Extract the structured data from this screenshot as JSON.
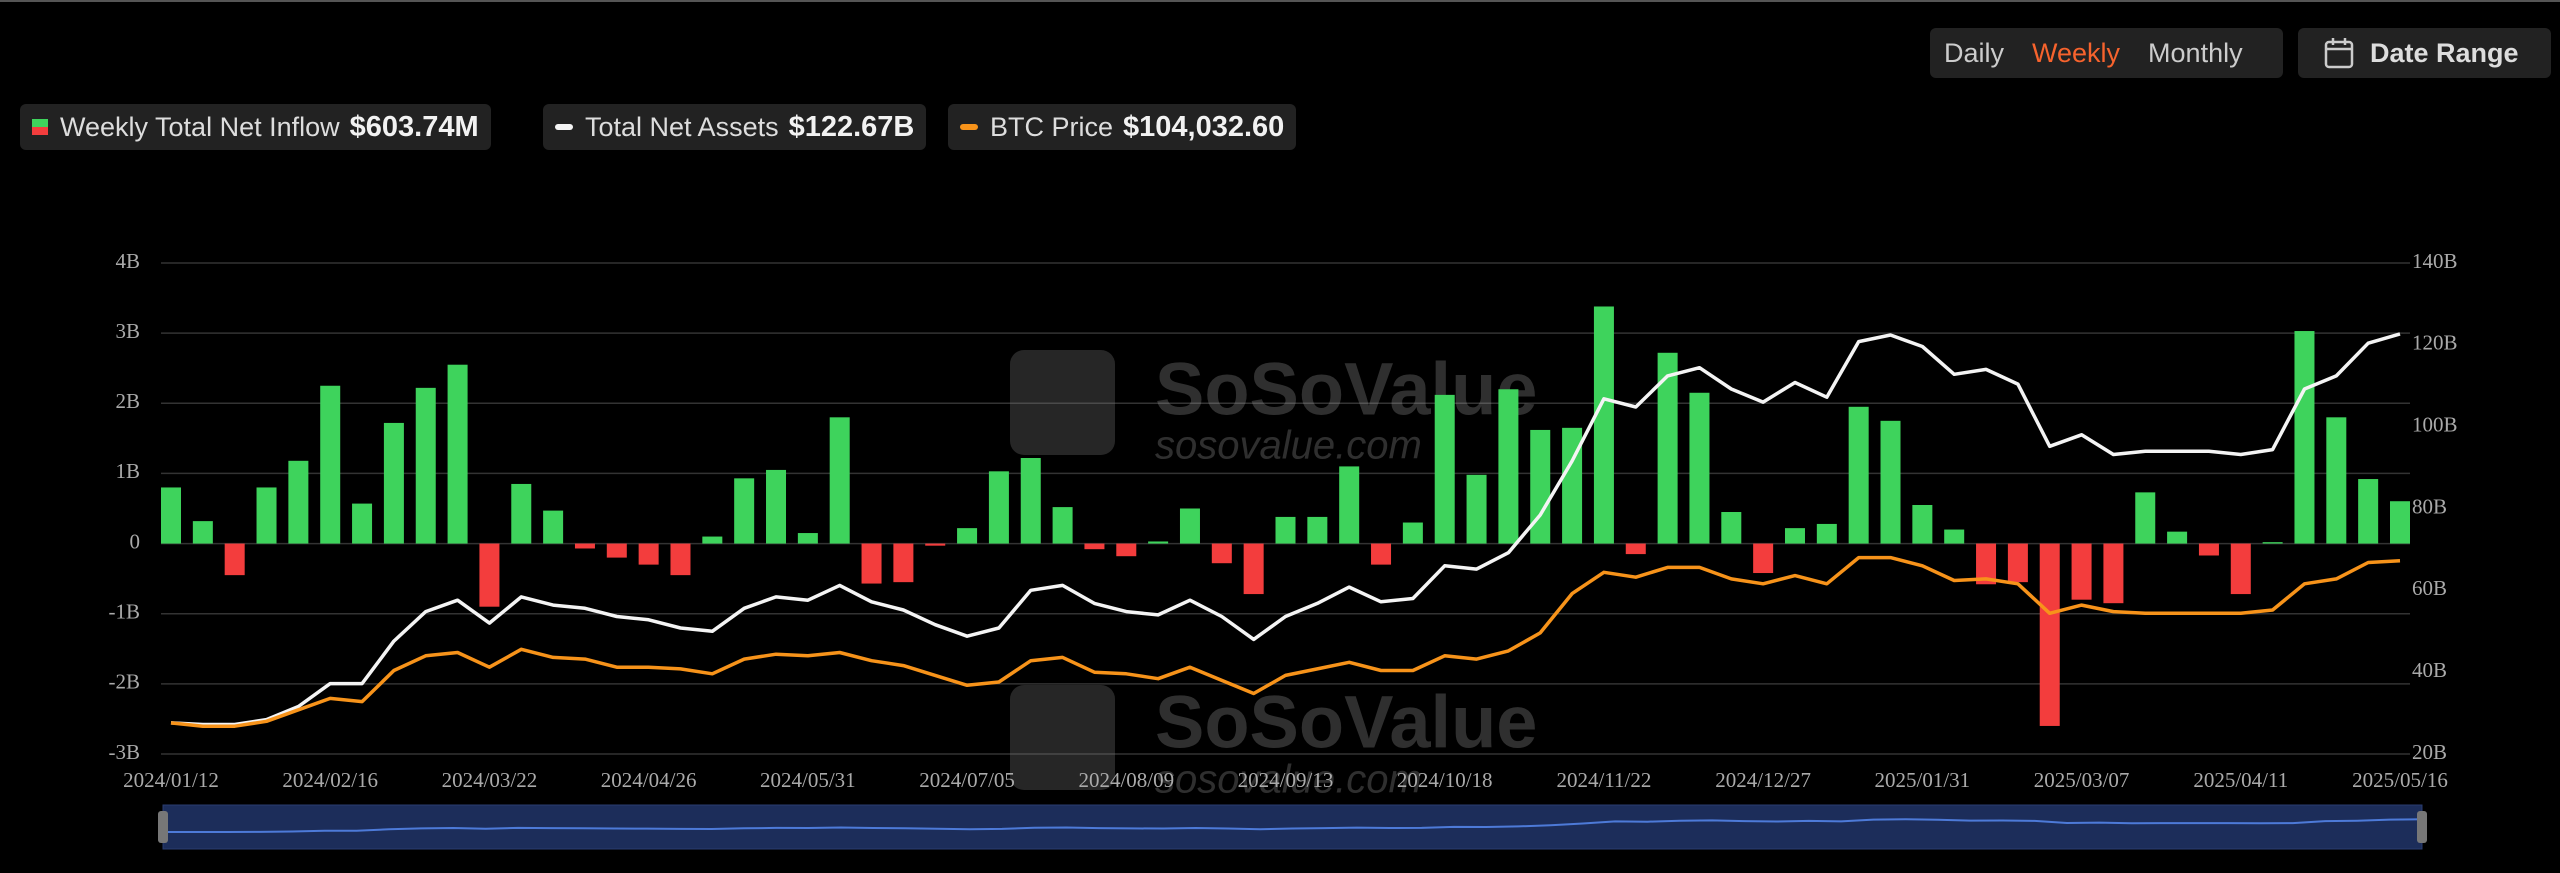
{
  "controls": {
    "periods": [
      "Daily",
      "Weekly",
      "Monthly"
    ],
    "active": "Weekly",
    "date_range": "Date Range"
  },
  "watermark": {
    "brand": "SoSoValue",
    "url": "sosovalue.com"
  },
  "chart_data": {
    "type": "bar",
    "categories": [
      "2024/01/12",
      null,
      null,
      null,
      null,
      "2024/02/16",
      null,
      null,
      null,
      null,
      "2024/03/22",
      null,
      null,
      null,
      null,
      "2024/04/26",
      null,
      null,
      null,
      null,
      "2024/05/31",
      null,
      null,
      null,
      null,
      "2024/07/05",
      null,
      null,
      null,
      null,
      "2024/08/09",
      null,
      null,
      null,
      null,
      "2024/09/13",
      null,
      null,
      null,
      null,
      "2024/10/18",
      null,
      null,
      null,
      null,
      "2024/11/22",
      null,
      null,
      null,
      null,
      "2024/12/27",
      null,
      null,
      null,
      null,
      "2025/01/31",
      null,
      null,
      null,
      null,
      "2025/03/07",
      null,
      null,
      null,
      null,
      "2025/04/11",
      null,
      null,
      null,
      null,
      "2025/05/16"
    ],
    "ylim": [
      -3,
      4
    ],
    "yticks": [
      {
        "value": -3,
        "label": "-3B"
      },
      {
        "value": -2,
        "label": "-2B"
      },
      {
        "value": -1,
        "label": "-1B"
      },
      0,
      {
        "value": 1,
        "label": "1B"
      },
      {
        "value": 2,
        "label": "2B"
      },
      {
        "value": 3,
        "label": "3B"
      },
      {
        "value": 4,
        "label": "4B"
      }
    ],
    "y2lim": [
      20,
      140
    ],
    "y2ticks": [
      {
        "value": 20,
        "label": "20B"
      },
      {
        "value": 40,
        "label": "40B"
      },
      {
        "value": 60,
        "label": "60B"
      },
      {
        "value": 80,
        "label": "80B"
      },
      {
        "value": 100,
        "label": "100B"
      },
      {
        "value": 120,
        "label": "120B"
      },
      {
        "value": 140,
        "label": "140B"
      }
    ],
    "y3lim": [
      34000,
      212000
    ],
    "grid": true,
    "series": [
      {
        "name": "Weekly Total Net Inflow",
        "legend_value": "$603.74M",
        "type": "bar",
        "color": "#3ed35c",
        "negative_color": "#f33d3d",
        "values": [
          0.8,
          0.32,
          -0.45,
          0.8,
          1.18,
          2.25,
          0.57,
          1.72,
          2.22,
          2.55,
          -0.9,
          0.85,
          0.47,
          -0.07,
          -0.2,
          -0.3,
          -0.45,
          0.1,
          0.93,
          1.05,
          0.15,
          1.8,
          -0.57,
          -0.55,
          -0.03,
          0.22,
          1.03,
          1.22,
          0.52,
          -0.08,
          -0.18,
          0.03,
          0.5,
          -0.28,
          -0.72,
          0.38,
          0.38,
          1.1,
          -0.3,
          0.3,
          2.12,
          0.98,
          2.2,
          1.62,
          1.65,
          3.38,
          -0.15,
          2.72,
          2.15,
          0.45,
          -0.42,
          0.22,
          0.28,
          1.95,
          1.75,
          0.55,
          0.2,
          -0.58,
          -0.55,
          -2.6,
          -0.8,
          -0.85,
          0.73,
          0.17,
          -0.17,
          -0.72,
          0.02,
          3.03,
          1.8,
          0.92,
          0.60374
        ]
      },
      {
        "name": "Total Net Assets",
        "legend_value": "$122.67B",
        "type": "line",
        "axis": "y2",
        "color": "#f4f4f4",
        "values": [
          27.6,
          27.2,
          27.2,
          28.4,
          31.6,
          37.2,
          37.2,
          47.6,
          54.8,
          57.6,
          52,
          58.4,
          56.4,
          55.6,
          53.6,
          52.8,
          50.8,
          50,
          55.6,
          58.4,
          57.6,
          61.2,
          57.2,
          55.2,
          51.6,
          48.8,
          50.8,
          60,
          61.2,
          56.8,
          54.8,
          54,
          57.6,
          53.6,
          48,
          53.6,
          56.8,
          60.8,
          57.2,
          58,
          66,
          65.2,
          69.2,
          78.4,
          91.6,
          106.8,
          104.8,
          112.4,
          114.4,
          109.2,
          106,
          110.8,
          107.2,
          120.8,
          122.4,
          119.6,
          112.8,
          114,
          110.4,
          95.2,
          98,
          93.2,
          94,
          94,
          94,
          93.2,
          94.4,
          109.2,
          112.4,
          120.4,
          122.67
        ]
      },
      {
        "name": "BTC Price",
        "legend_value": "$104,032.60",
        "type": "line",
        "axis": "y3",
        "color": "#f7931a",
        "values": [
          45270,
          44090,
          44090,
          45870,
          50020,
          54170,
          52990,
          64260,
          69600,
          70790,
          65450,
          71970,
          69010,
          68410,
          65450,
          65450,
          64850,
          63070,
          68410,
          70190,
          69600,
          70790,
          67820,
          66040,
          62480,
          58920,
          60110,
          67820,
          69010,
          63670,
          63070,
          61290,
          65450,
          60700,
          55950,
          62480,
          64850,
          67230,
          64260,
          64260,
          69600,
          68410,
          71380,
          77910,
          92150,
          99860,
          98080,
          101640,
          101640,
          97480,
          95700,
          98670,
          95700,
          105200,
          105200,
          102230,
          96890,
          97480,
          95700,
          85020,
          87990,
          85610,
          85020,
          85020,
          85020,
          85020,
          86210,
          95700,
          97480,
          103420,
          104032.6
        ]
      }
    ]
  }
}
